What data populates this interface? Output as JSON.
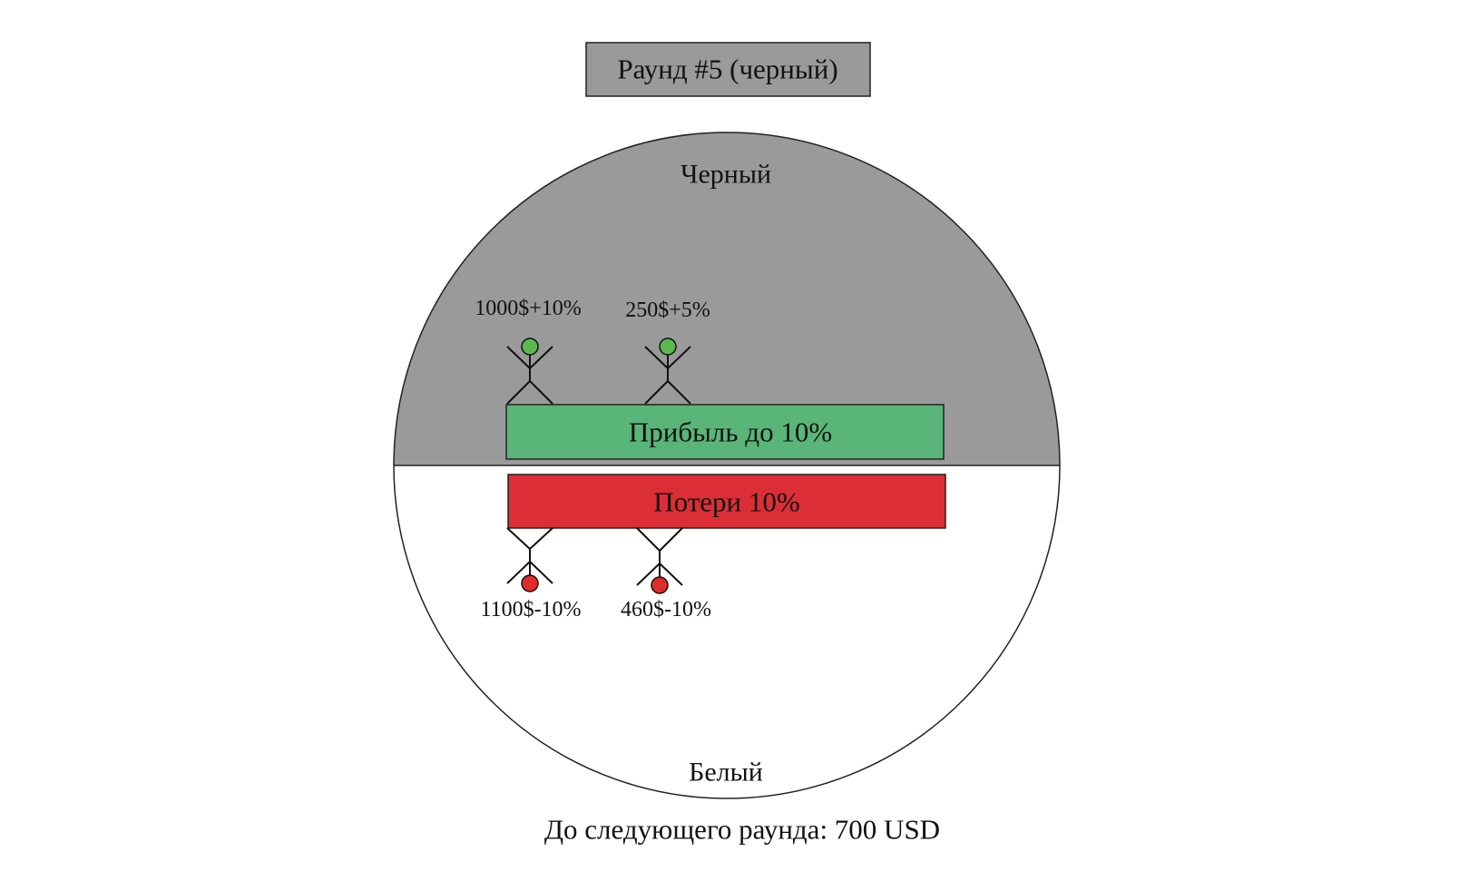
{
  "round_title": "Раунд #5 (черный)",
  "top_half": {
    "label": "Черный",
    "fill": "#9a9a9a"
  },
  "bottom_half": {
    "label": "Белый",
    "fill": "#ffffff"
  },
  "profit_bar": {
    "label": "Прибыль до 10%",
    "fill": "#5ab678"
  },
  "loss_bar": {
    "label": "Потери 10%",
    "fill": "#dc2e36"
  },
  "winners": [
    {
      "label": "1000$+10%",
      "head_color": "#5ab84e"
    },
    {
      "label": "250$+5%",
      "head_color": "#5ab84e"
    }
  ],
  "losers": [
    {
      "label": "1100$-10%",
      "head_color": "#e02b2b"
    },
    {
      "label": "460$-10%",
      "head_color": "#e02b2b"
    }
  ],
  "countdown": "До следующего раунда: 700 USD"
}
